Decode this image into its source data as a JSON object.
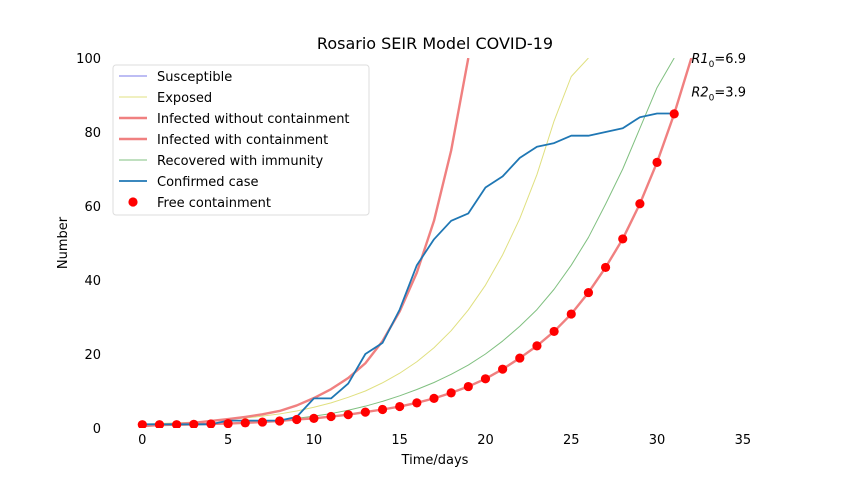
{
  "chart_data": {
    "type": "line",
    "title": "Rosario SEIR Model COVID-19",
    "xlabel": "Time/days",
    "ylabel": "Number",
    "xlim": [
      -2,
      36
    ],
    "ylim": [
      0,
      100
    ],
    "xticks": [
      0,
      5,
      10,
      15,
      20,
      25,
      30,
      35
    ],
    "yticks": [
      0,
      20,
      40,
      60,
      80,
      100
    ],
    "grid": false,
    "legend_position": "upper left",
    "annotations": [
      {
        "prefix": "R1",
        "sub": "0",
        "suffix": "=6.9",
        "x": 32,
        "y": 100
      },
      {
        "prefix": "R2",
        "sub": "0",
        "suffix": "=3.9",
        "x": 32,
        "y": 91
      }
    ],
    "series": [
      {
        "name": "Susceptible",
        "color": "#7b7bea",
        "style": "thin",
        "x": [],
        "y": []
      },
      {
        "name": "Exposed",
        "color": "#e0e080",
        "style": "thin",
        "x": [
          0,
          1,
          2,
          3,
          4,
          5,
          6,
          7,
          8,
          9,
          10,
          11,
          12,
          13,
          14,
          15,
          16,
          17,
          18,
          19,
          20,
          21,
          22,
          23,
          24,
          25,
          26
        ],
        "y": [
          1,
          1.2,
          1.4,
          1.6,
          1.9,
          2.3,
          2.7,
          3.2,
          3.8,
          4.6,
          5.6,
          6.8,
          8.3,
          10.0,
          12.2,
          14.8,
          17.9,
          21.7,
          26.3,
          31.9,
          38.6,
          46.8,
          56.6,
          68.5,
          83,
          95,
          100
        ]
      },
      {
        "name": "Infected without containment",
        "color": "#f08080",
        "style": "thick",
        "x": [
          0,
          1,
          2,
          3,
          4,
          5,
          6,
          7,
          8,
          9,
          10,
          11,
          12,
          13,
          14,
          15,
          16,
          17,
          18,
          19
        ],
        "y": [
          0.5,
          0.8,
          1.1,
          1.4,
          1.9,
          2.4,
          3.0,
          3.7,
          4.6,
          6.1,
          8.1,
          10.5,
          13.5,
          17.5,
          23.5,
          31.5,
          42.0,
          56.0,
          75.0,
          100
        ]
      },
      {
        "name": "Infected with containment",
        "color": "#f08080",
        "style": "thick",
        "x": [
          0,
          1,
          2,
          3,
          4,
          5,
          6,
          7,
          8,
          9,
          10,
          11,
          12,
          13,
          14,
          15,
          16,
          17,
          18,
          19,
          20,
          21,
          22,
          23,
          24,
          25,
          26,
          27,
          28,
          29,
          30,
          31,
          32
        ],
        "y": [
          0.9,
          0.9,
          0.9,
          1.0,
          1.1,
          1.2,
          1.4,
          1.6,
          1.9,
          2.3,
          2.6,
          3.1,
          3.6,
          4.3,
          5.0,
          5.8,
          6.8,
          8.0,
          9.5,
          11.2,
          13.3,
          15.9,
          18.9,
          22.2,
          26.1,
          30.8,
          36.6,
          43.4,
          51.1,
          60.6,
          71.8,
          84.9,
          100
        ]
      },
      {
        "name": "Recovered with immunity",
        "color": "#80c080",
        "style": "thin",
        "x": [
          0,
          1,
          2,
          3,
          4,
          5,
          6,
          7,
          8,
          9,
          10,
          11,
          12,
          13,
          14,
          15,
          16,
          17,
          18,
          19,
          20,
          21,
          22,
          23,
          24,
          25,
          26,
          27,
          28,
          29,
          30,
          31
        ],
        "y": [
          0.5,
          0.6,
          0.7,
          0.8,
          1.0,
          1.2,
          1.4,
          1.7,
          2.1,
          2.6,
          3.2,
          3.9,
          4.8,
          5.9,
          7.2,
          8.7,
          10.4,
          12.3,
          14.5,
          17.0,
          20.0,
          23.5,
          27.5,
          32.0,
          37.5,
          44.0,
          51.5,
          60.5,
          70.0,
          81.0,
          92.0,
          100
        ]
      },
      {
        "name": "Confirmed case",
        "color": "#1f77b4",
        "style": "medium",
        "x": [
          0,
          1,
          2,
          3,
          4,
          5,
          6,
          7,
          8,
          9,
          10,
          11,
          12,
          13,
          14,
          15,
          16,
          17,
          18,
          19,
          20,
          21,
          22,
          23,
          24,
          25,
          26,
          27,
          28,
          29,
          30,
          31
        ],
        "y": [
          1,
          1,
          1,
          1,
          1,
          2,
          2,
          2,
          2,
          3,
          8,
          8,
          12,
          20,
          23,
          32,
          44,
          51,
          56,
          58,
          65,
          68,
          73,
          76,
          77,
          79,
          79,
          80,
          81,
          84,
          85,
          85
        ]
      },
      {
        "name": "Free containment",
        "color": "#ff0000",
        "style": "markers",
        "x": [
          0,
          1,
          2,
          3,
          4,
          5,
          6,
          7,
          8,
          9,
          10,
          11,
          12,
          13,
          14,
          15,
          16,
          17,
          18,
          19,
          20,
          21,
          22,
          23,
          24,
          25,
          26,
          27,
          28,
          29,
          30,
          31
        ],
        "y": [
          0.9,
          0.9,
          0.9,
          1.0,
          1.1,
          1.2,
          1.4,
          1.6,
          1.9,
          2.3,
          2.6,
          3.1,
          3.6,
          4.3,
          5.0,
          5.8,
          6.8,
          8.0,
          9.5,
          11.2,
          13.3,
          15.9,
          18.9,
          22.2,
          26.1,
          30.8,
          36.6,
          43.4,
          51.1,
          60.6,
          71.8,
          84.9
        ]
      }
    ]
  }
}
